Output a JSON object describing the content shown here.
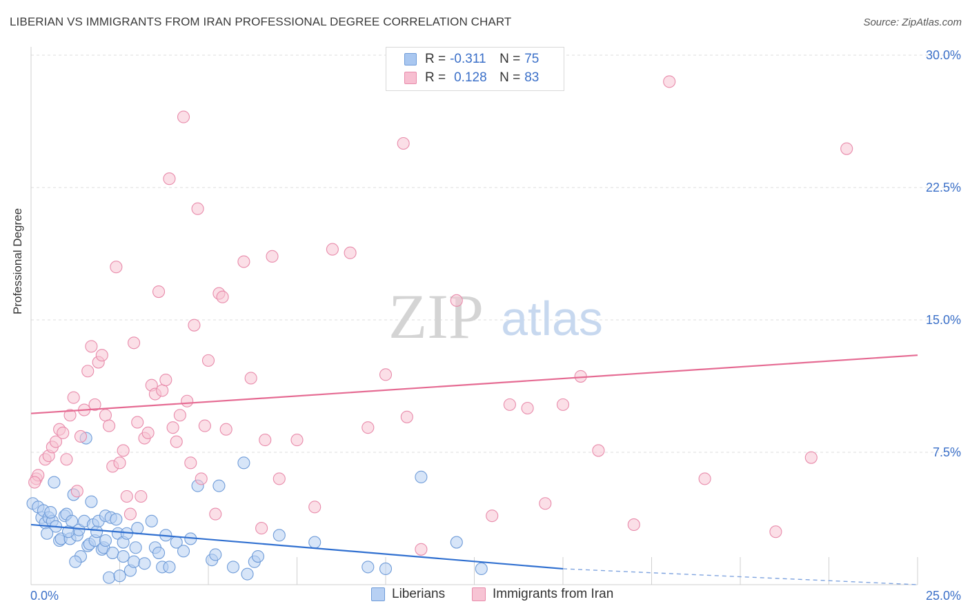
{
  "title": "LIBERIAN VS IMMIGRANTS FROM IRAN PROFESSIONAL DEGREE CORRELATION CHART",
  "source": "Source: ZipAtlas.com",
  "watermark": {
    "zip": "ZIP",
    "atlas": "atlas"
  },
  "legend_top": {
    "rows": [
      {
        "r_label": "R =",
        "r_value": "-0.311",
        "n_label": "N =",
        "n_value": "75",
        "color": "#a9c7f0",
        "border": "#6e9bd8"
      },
      {
        "r_label": "R =",
        "r_value": "0.128",
        "n_label": "N =",
        "n_value": "83",
        "color": "#f7bfd1",
        "border": "#e88aaa"
      }
    ]
  },
  "chart_data": {
    "type": "scatter",
    "title": "LIBERIAN VS IMMIGRANTS FROM IRAN PROFESSIONAL DEGREE CORRELATION CHART",
    "xlabel": "",
    "ylabel": "Professional Degree",
    "xlim": [
      0,
      25
    ],
    "ylim": [
      0,
      30
    ],
    "x_tick_labels": [
      "0.0%",
      "25.0%"
    ],
    "y_ticks": [
      7.5,
      15.0,
      22.5,
      30.0
    ],
    "y_tick_labels": [
      "7.5%",
      "15.0%",
      "22.5%",
      "30.0%"
    ],
    "grid": true,
    "legend_position": "bottom",
    "series": [
      {
        "name": "Liberians",
        "color": "#6e9bd8",
        "fill": "#b7d0f3",
        "trend": {
          "x": [
            0,
            15
          ],
          "y": [
            3.4,
            0.9
          ],
          "dashed_to": [
            25,
            0.0
          ]
        },
        "points": [
          [
            0.05,
            4.6
          ],
          [
            0.2,
            4.4
          ],
          [
            0.3,
            3.8
          ],
          [
            0.35,
            4.2
          ],
          [
            0.4,
            3.5
          ],
          [
            0.5,
            3.8
          ],
          [
            0.6,
            3.6
          ],
          [
            0.65,
            5.8
          ],
          [
            0.7,
            3.3
          ],
          [
            0.8,
            2.5
          ],
          [
            0.85,
            2.6
          ],
          [
            0.95,
            3.9
          ],
          [
            1.0,
            4.0
          ],
          [
            1.1,
            2.6
          ],
          [
            1.15,
            3.6
          ],
          [
            1.2,
            5.1
          ],
          [
            1.3,
            2.8
          ],
          [
            1.35,
            3.1
          ],
          [
            1.4,
            1.6
          ],
          [
            1.5,
            3.6
          ],
          [
            1.55,
            8.3
          ],
          [
            1.6,
            2.2
          ],
          [
            1.65,
            2.3
          ],
          [
            1.7,
            4.7
          ],
          [
            1.75,
            3.4
          ],
          [
            1.8,
            2.5
          ],
          [
            1.85,
            3.0
          ],
          [
            1.9,
            3.6
          ],
          [
            2.0,
            2.0
          ],
          [
            2.05,
            2.1
          ],
          [
            2.1,
            3.9
          ],
          [
            2.2,
            0.4
          ],
          [
            2.25,
            3.8
          ],
          [
            2.3,
            1.8
          ],
          [
            2.4,
            3.7
          ],
          [
            2.45,
            2.9
          ],
          [
            2.5,
            0.5
          ],
          [
            2.6,
            2.4
          ],
          [
            2.7,
            2.9
          ],
          [
            2.8,
            0.8
          ],
          [
            2.9,
            1.3
          ],
          [
            2.95,
            2.1
          ],
          [
            3.0,
            3.2
          ],
          [
            3.2,
            1.2
          ],
          [
            3.4,
            3.6
          ],
          [
            3.5,
            2.1
          ],
          [
            3.6,
            1.8
          ],
          [
            3.7,
            1.0
          ],
          [
            3.8,
            2.8
          ],
          [
            3.9,
            1.0
          ],
          [
            4.1,
            2.4
          ],
          [
            4.3,
            1.9
          ],
          [
            4.5,
            2.6
          ],
          [
            4.7,
            5.6
          ],
          [
            5.1,
            1.4
          ],
          [
            5.2,
            1.7
          ],
          [
            5.3,
            5.6
          ],
          [
            5.7,
            1.0
          ],
          [
            6.0,
            6.9
          ],
          [
            6.1,
            0.6
          ],
          [
            6.3,
            1.3
          ],
          [
            6.4,
            1.6
          ],
          [
            7.0,
            2.8
          ],
          [
            8.0,
            2.4
          ],
          [
            9.5,
            1.0
          ],
          [
            10.0,
            0.9
          ],
          [
            11.0,
            6.1
          ],
          [
            12.0,
            2.4
          ],
          [
            12.7,
            0.9
          ],
          [
            2.1,
            2.5
          ],
          [
            1.25,
            1.3
          ],
          [
            0.45,
            2.9
          ],
          [
            0.55,
            4.1
          ],
          [
            2.6,
            1.6
          ],
          [
            1.05,
            3.0
          ]
        ]
      },
      {
        "name": "Immigrants from Iran",
        "color": "#e88aaa",
        "fill": "#f7c4d4",
        "trend": {
          "x": [
            0,
            25
          ],
          "y": [
            9.7,
            13.0
          ]
        },
        "points": [
          [
            0.15,
            6.0
          ],
          [
            0.2,
            6.2
          ],
          [
            0.4,
            7.1
          ],
          [
            0.5,
            7.3
          ],
          [
            0.6,
            7.8
          ],
          [
            0.7,
            8.1
          ],
          [
            0.8,
            8.8
          ],
          [
            0.9,
            8.6
          ],
          [
            1.0,
            7.1
          ],
          [
            1.1,
            9.6
          ],
          [
            1.2,
            10.6
          ],
          [
            1.3,
            5.3
          ],
          [
            1.4,
            8.4
          ],
          [
            1.5,
            9.9
          ],
          [
            1.6,
            12.1
          ],
          [
            1.7,
            13.5
          ],
          [
            1.8,
            10.2
          ],
          [
            1.9,
            12.6
          ],
          [
            2.0,
            13.0
          ],
          [
            2.1,
            9.6
          ],
          [
            2.2,
            9.0
          ],
          [
            2.3,
            6.7
          ],
          [
            2.4,
            18.0
          ],
          [
            2.5,
            6.9
          ],
          [
            2.6,
            7.6
          ],
          [
            2.7,
            5.0
          ],
          [
            2.8,
            4.0
          ],
          [
            2.9,
            13.7
          ],
          [
            3.0,
            9.2
          ],
          [
            3.1,
            5.0
          ],
          [
            3.2,
            8.3
          ],
          [
            3.3,
            8.6
          ],
          [
            3.4,
            11.3
          ],
          [
            3.5,
            10.8
          ],
          [
            3.6,
            16.6
          ],
          [
            3.7,
            11.0
          ],
          [
            3.8,
            11.6
          ],
          [
            3.9,
            23.0
          ],
          [
            4.0,
            8.9
          ],
          [
            4.1,
            8.1
          ],
          [
            4.2,
            9.6
          ],
          [
            4.3,
            26.5
          ],
          [
            4.4,
            10.4
          ],
          [
            4.5,
            6.9
          ],
          [
            4.6,
            14.7
          ],
          [
            4.7,
            21.3
          ],
          [
            4.8,
            6.0
          ],
          [
            4.9,
            9.0
          ],
          [
            5.0,
            12.7
          ],
          [
            5.2,
            4.0
          ],
          [
            5.3,
            16.5
          ],
          [
            5.4,
            16.3
          ],
          [
            5.5,
            8.8
          ],
          [
            6.0,
            18.3
          ],
          [
            6.2,
            11.7
          ],
          [
            6.5,
            3.2
          ],
          [
            6.6,
            8.2
          ],
          [
            6.8,
            18.6
          ],
          [
            7.0,
            6.0
          ],
          [
            7.5,
            8.2
          ],
          [
            8.0,
            4.4
          ],
          [
            8.5,
            19.0
          ],
          [
            9.0,
            18.8
          ],
          [
            9.5,
            8.9
          ],
          [
            10.0,
            11.9
          ],
          [
            10.5,
            25.0
          ],
          [
            10.6,
            9.5
          ],
          [
            11.0,
            2.0
          ],
          [
            12.0,
            16.1
          ],
          [
            13.0,
            3.9
          ],
          [
            13.5,
            10.2
          ],
          [
            14.0,
            10.0
          ],
          [
            14.5,
            4.6
          ],
          [
            15.0,
            10.2
          ],
          [
            15.5,
            11.8
          ],
          [
            16.0,
            7.6
          ],
          [
            17.0,
            3.4
          ],
          [
            18.0,
            28.5
          ],
          [
            19.0,
            6.0
          ],
          [
            21.0,
            3.0
          ],
          [
            22.0,
            7.2
          ],
          [
            23.0,
            24.7
          ],
          [
            0.1,
            5.8
          ]
        ]
      }
    ]
  },
  "legend_bottom": [
    {
      "label": "Liberians",
      "color": "#b7d0f3",
      "border": "#6e9bd8"
    },
    {
      "label": "Immigrants from Iran",
      "color": "#f7c4d4",
      "border": "#e88aaa"
    }
  ]
}
